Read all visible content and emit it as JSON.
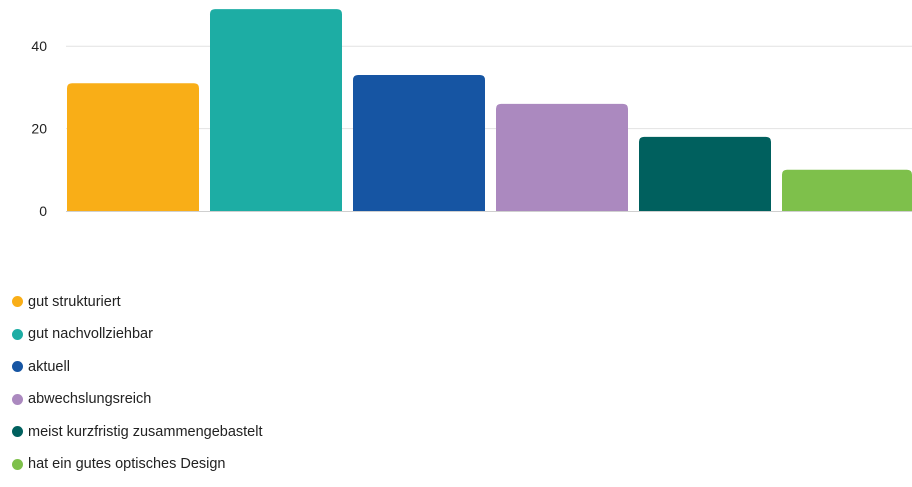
{
  "chart_data": {
    "type": "bar",
    "series": [
      {
        "name": "gut strukturiert",
        "value": 31,
        "color": "#F9AE17"
      },
      {
        "name": "gut nachvollziehbar",
        "value": 49,
        "color": "#1DADA4"
      },
      {
        "name": "aktuell",
        "value": 33,
        "color": "#1655A3"
      },
      {
        "name": "abwechslungsreich",
        "value": 26,
        "color": "#AB89BF"
      },
      {
        "name": "meist kurzfristig zusammengebastelt",
        "value": 18,
        "color": "#00605E"
      },
      {
        "name": "hat ein gutes optisches Design",
        "value": 10,
        "color": "#7EC04B"
      }
    ],
    "yticks": [
      "0",
      "20",
      "40"
    ],
    "ylim": [
      0,
      50
    ],
    "grid": true,
    "legend_position": "bottom-left"
  }
}
